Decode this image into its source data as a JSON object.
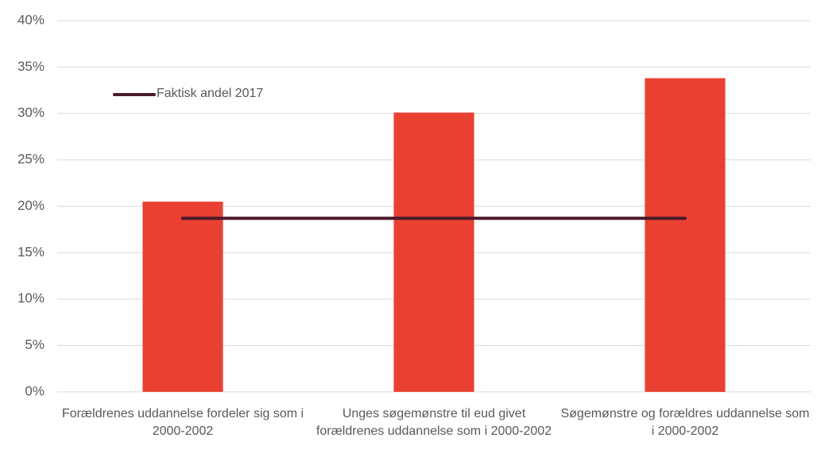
{
  "chart_data": {
    "type": "bar",
    "categories": [
      "Forældrenes uddannelse fordeler sig som i 2000-2002",
      "Unges søgemønstre til eud givet forældrenes uddannelse som i 2000-2002",
      "Søgemønstre og forældres uddannelse som i 2000-2002"
    ],
    "series": [
      {
        "type": "bar",
        "color": "#e94032",
        "values": [
          20.5,
          30.1,
          33.8
        ]
      },
      {
        "type": "line",
        "name": "Faktisk andel 2017",
        "color": "#4a1a2a",
        "values": [
          18.7,
          18.7,
          18.7
        ]
      }
    ],
    "ylim": [
      0,
      40
    ],
    "yticks": [
      {
        "value": 0,
        "label": "0%"
      },
      {
        "value": 5,
        "label": "5%"
      },
      {
        "value": 10,
        "label": "10%"
      },
      {
        "value": 15,
        "label": "15%"
      },
      {
        "value": 20,
        "label": "20%"
      },
      {
        "value": 25,
        "label": "25%"
      },
      {
        "value": 30,
        "label": "30%"
      },
      {
        "value": 35,
        "label": "35%"
      },
      {
        "value": 40,
        "label": "40%"
      }
    ],
    "grid": true
  }
}
